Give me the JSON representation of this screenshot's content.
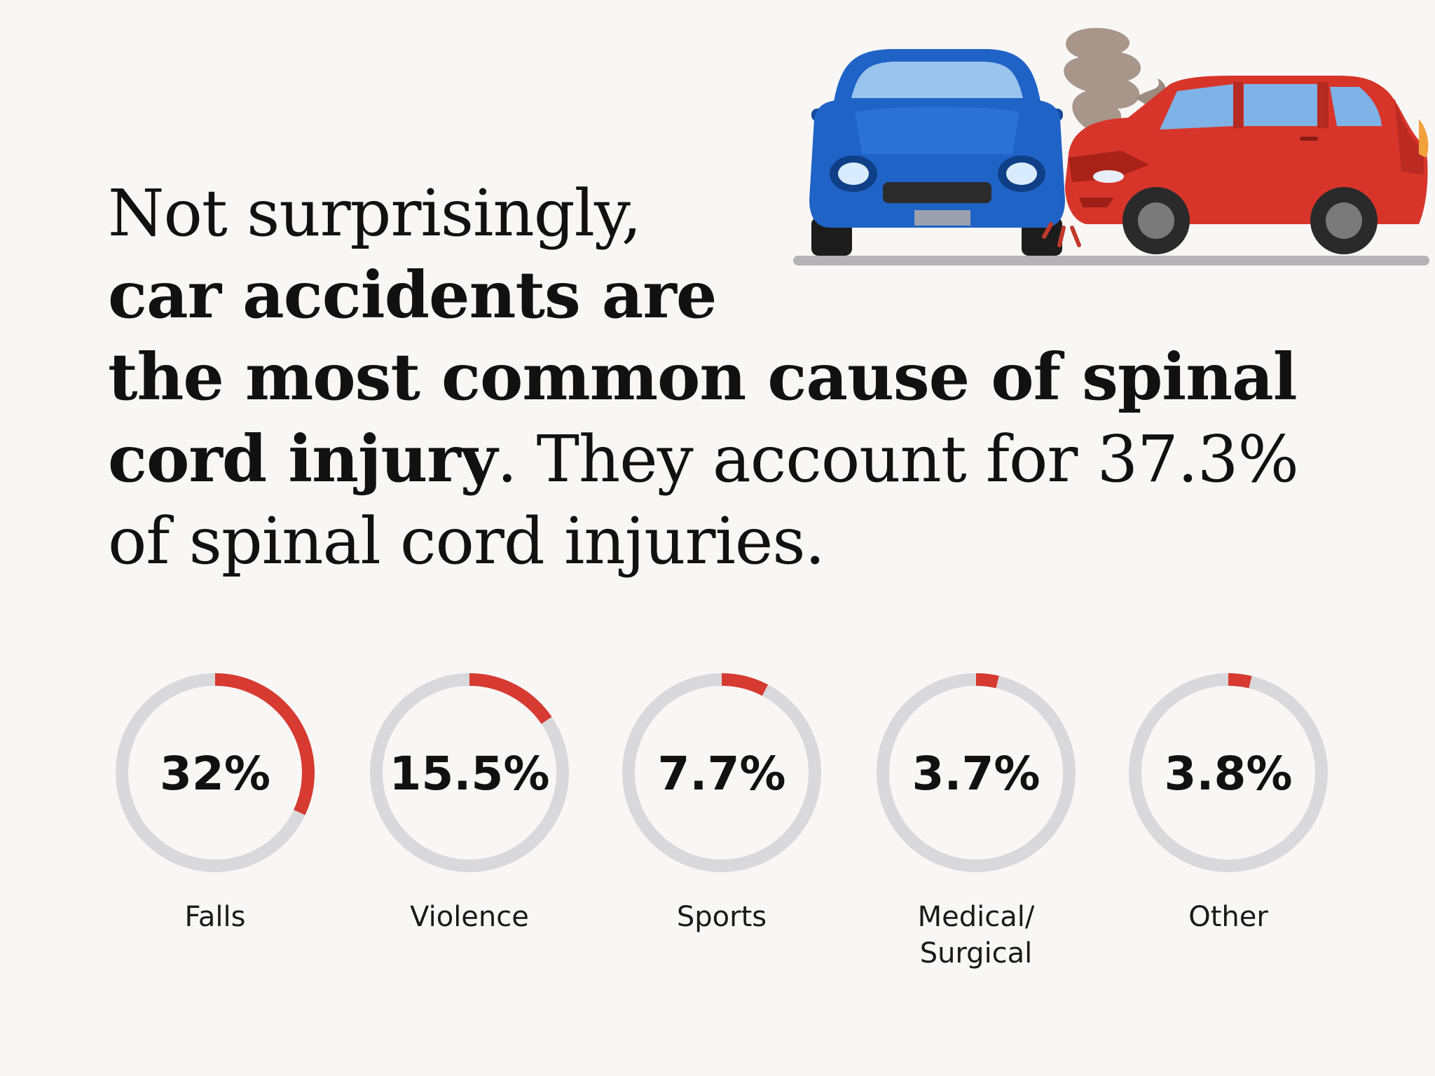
{
  "headline": {
    "line1": "Not surprisingly,",
    "line2": "car accidents are",
    "line3": "the most common cause of spinal",
    "line4_bold": "cord injury",
    "line4_rest": ". They account for 37.3%",
    "line5": "of spinal cord injuries."
  },
  "colors": {
    "background": "#f9f7f6",
    "ring_track": "#d9d8da",
    "ring_fill": "#d63a30",
    "blue_car": "#1f63c7",
    "red_car": "#d8352a",
    "road": "#b5b3b6"
  },
  "chart_data": {
    "type": "donut",
    "categories": [
      "Falls",
      "Violence",
      "Sports",
      "Medical/ Surgical",
      "Other"
    ],
    "label_lines": [
      [
        "Falls"
      ],
      [
        "Violence"
      ],
      [
        "Sports"
      ],
      [
        "Medical/",
        "Surgical"
      ],
      [
        "Other"
      ]
    ],
    "values": [
      32,
      15.5,
      7.7,
      3.7,
      3.8
    ],
    "value_labels": [
      "32%",
      "15.5%",
      "7.7%",
      "3.7%",
      "3.8%"
    ],
    "unit": "%",
    "max": 100
  }
}
